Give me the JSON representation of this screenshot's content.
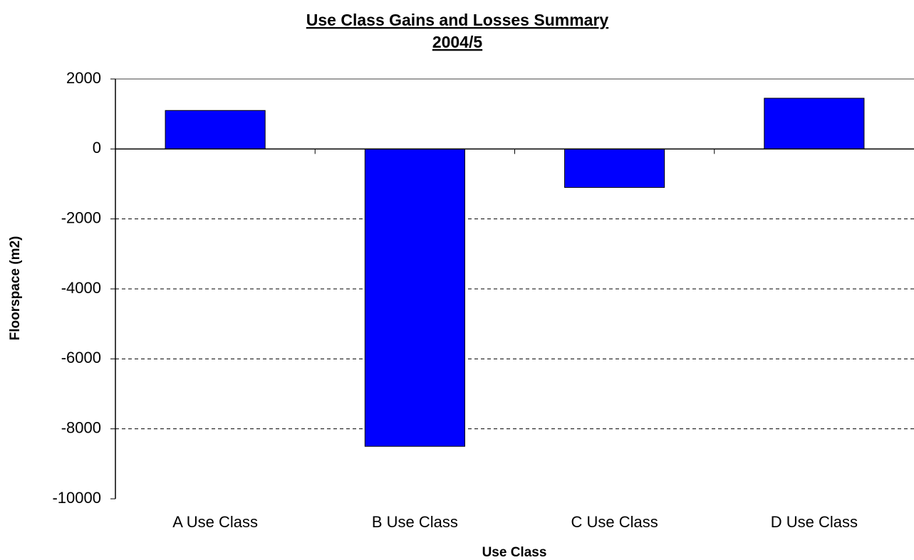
{
  "chart_data": {
    "type": "bar",
    "title": "Use Class Gains and Losses Summary",
    "subtitle": "2004/5",
    "x_label": "Use Class",
    "y_label": "Floorspace (m2)",
    "categories": [
      "A Use Class",
      "B Use Class",
      "C Use Class",
      "D Use Class"
    ],
    "values": [
      1100,
      -8500,
      -1100,
      1450
    ],
    "color": "#0000ff",
    "ylim": [
      -10000,
      2000
    ],
    "yticks": [
      -10000,
      -8000,
      -6000,
      -4000,
      -2000,
      0,
      2000
    ],
    "grid": true
  }
}
